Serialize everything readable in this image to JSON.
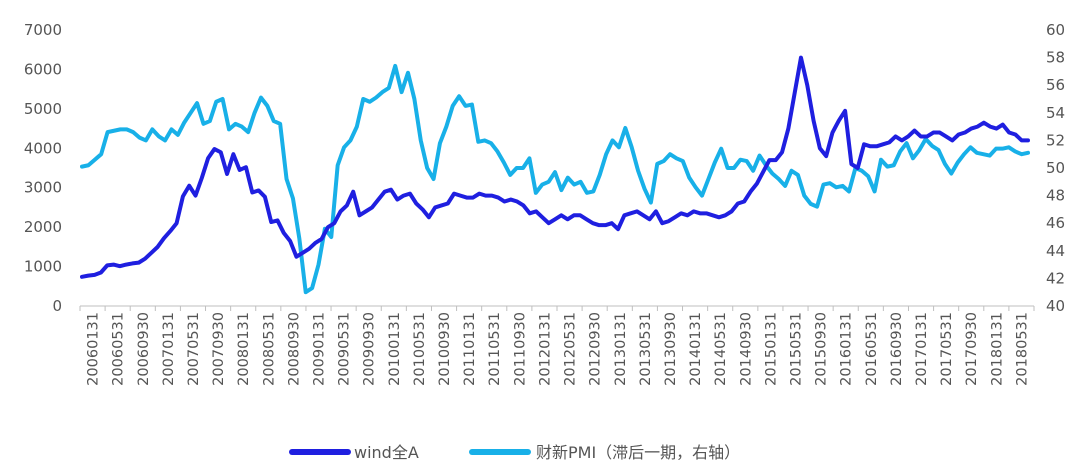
{
  "chart_data": {
    "type": "line",
    "title": "",
    "xlabel": "",
    "ylabel": "",
    "ylim": [
      0,
      7000
    ],
    "ylim_right": [
      40,
      60
    ],
    "yticks_left": [
      "0",
      "1000",
      "2000",
      "3000",
      "4000",
      "5000",
      "6000",
      "7000"
    ],
    "yticks_right": [
      "40",
      "42",
      "44",
      "46",
      "48",
      "50",
      "52",
      "54",
      "56",
      "58",
      "60"
    ],
    "xtick_labels": [
      "20060131",
      "20060531",
      "20060930",
      "20070131",
      "20070531",
      "20070930",
      "20080131",
      "20080531",
      "20080930",
      "20090131",
      "20090531",
      "20090930",
      "20100131",
      "20100531",
      "20100930",
      "20110131",
      "20110531",
      "20110930",
      "20120131",
      "20120531",
      "20120930",
      "20130131",
      "20130531",
      "20130930",
      "20140131",
      "20140531",
      "20140930",
      "20150131",
      "20150531",
      "20150930",
      "20160131",
      "20160531",
      "20160930",
      "20170131",
      "20170531",
      "20170930",
      "20180131",
      "20180531"
    ],
    "grid": false,
    "legend_position": "bottom",
    "series": [
      {
        "name": "wind全A",
        "axis": "left",
        "color": "#1f1fe0",
        "values": [
          740,
          770,
          790,
          850,
          1030,
          1050,
          1010,
          1050,
          1080,
          1100,
          1200,
          1350,
          1500,
          1720,
          1900,
          2100,
          2780,
          3050,
          2800,
          3250,
          3750,
          3980,
          3900,
          3350,
          3850,
          3450,
          3520,
          2880,
          2930,
          2770,
          2130,
          2170,
          1850,
          1650,
          1250,
          1350,
          1450,
          1600,
          1700,
          2000,
          2100,
          2400,
          2550,
          2900,
          2300,
          2400,
          2500,
          2700,
          2900,
          2950,
          2700,
          2800,
          2850,
          2600,
          2450,
          2250,
          2500,
          2550,
          2600,
          2850,
          2800,
          2750,
          2750,
          2850,
          2800,
          2800,
          2750,
          2650,
          2700,
          2650,
          2550,
          2350,
          2400,
          2250,
          2100,
          2200,
          2300,
          2200,
          2300,
          2300,
          2200,
          2100,
          2050,
          2050,
          2100,
          1950,
          2300,
          2350,
          2400,
          2300,
          2200,
          2400,
          2100,
          2150,
          2250,
          2350,
          2300,
          2400,
          2350,
          2350,
          2300,
          2250,
          2300,
          2400,
          2600,
          2650,
          2900,
          3100,
          3400,
          3700,
          3700,
          3900,
          4500,
          5400,
          6300,
          5600,
          4700,
          4000,
          3800,
          4400,
          4700,
          4950,
          3600,
          3500,
          4100,
          4050,
          4050,
          4100,
          4150,
          4300,
          4200,
          4300,
          4450,
          4300,
          4300,
          4400,
          4400,
          4300,
          4200,
          4350,
          4400,
          4500,
          4550,
          4650,
          4550,
          4500,
          4600,
          4400,
          4350,
          4200,
          4200
        ]
      },
      {
        "name": "财新PMI（滞后一期，右轴）",
        "axis": "right",
        "color": "#18b0e8",
        "values": [
          50.1,
          50.2,
          50.6,
          51.0,
          52.6,
          52.7,
          52.8,
          52.8,
          52.6,
          52.2,
          52.0,
          52.8,
          52.3,
          52.0,
          52.8,
          52.4,
          53.3,
          54.0,
          54.7,
          53.2,
          53.4,
          54.8,
          55.0,
          52.8,
          53.2,
          53.0,
          52.6,
          54.0,
          55.1,
          54.5,
          53.4,
          53.2,
          49.2,
          47.8,
          44.9,
          41.0,
          41.3,
          43.0,
          45.6,
          45.0,
          50.2,
          51.5,
          52.0,
          53.0,
          55.0,
          54.8,
          55.1,
          55.5,
          55.8,
          57.4,
          55.5,
          56.9,
          55.0,
          52.0,
          50.0,
          49.2,
          51.8,
          53.0,
          54.5,
          55.2,
          54.5,
          54.6,
          51.9,
          52.0,
          51.8,
          51.2,
          50.4,
          49.5,
          50.0,
          50.0,
          50.7,
          48.2,
          48.8,
          49.0,
          49.7,
          48.4,
          49.3,
          48.8,
          49.0,
          48.2,
          48.3,
          49.5,
          51.0,
          52.0,
          51.5,
          52.9,
          51.5,
          49.8,
          48.5,
          47.5,
          50.3,
          50.5,
          51.0,
          50.7,
          50.5,
          49.3,
          48.6,
          48.0,
          49.2,
          50.4,
          51.4,
          50.0,
          50.0,
          50.6,
          50.5,
          49.8,
          50.9,
          50.2,
          49.6,
          49.2,
          48.7,
          49.8,
          49.5,
          48.0,
          47.4,
          47.2,
          48.8,
          48.9,
          48.6,
          48.7,
          48.3,
          50.0,
          49.8,
          49.4,
          48.3,
          50.6,
          50.1,
          50.2,
          51.2,
          51.8,
          50.7,
          51.3,
          52.1,
          51.6,
          51.3,
          50.3,
          49.6,
          50.4,
          51.0,
          51.5,
          51.1,
          51.0,
          50.9,
          51.4,
          51.4,
          51.5,
          51.2,
          51.0,
          51.1
        ]
      }
    ]
  }
}
